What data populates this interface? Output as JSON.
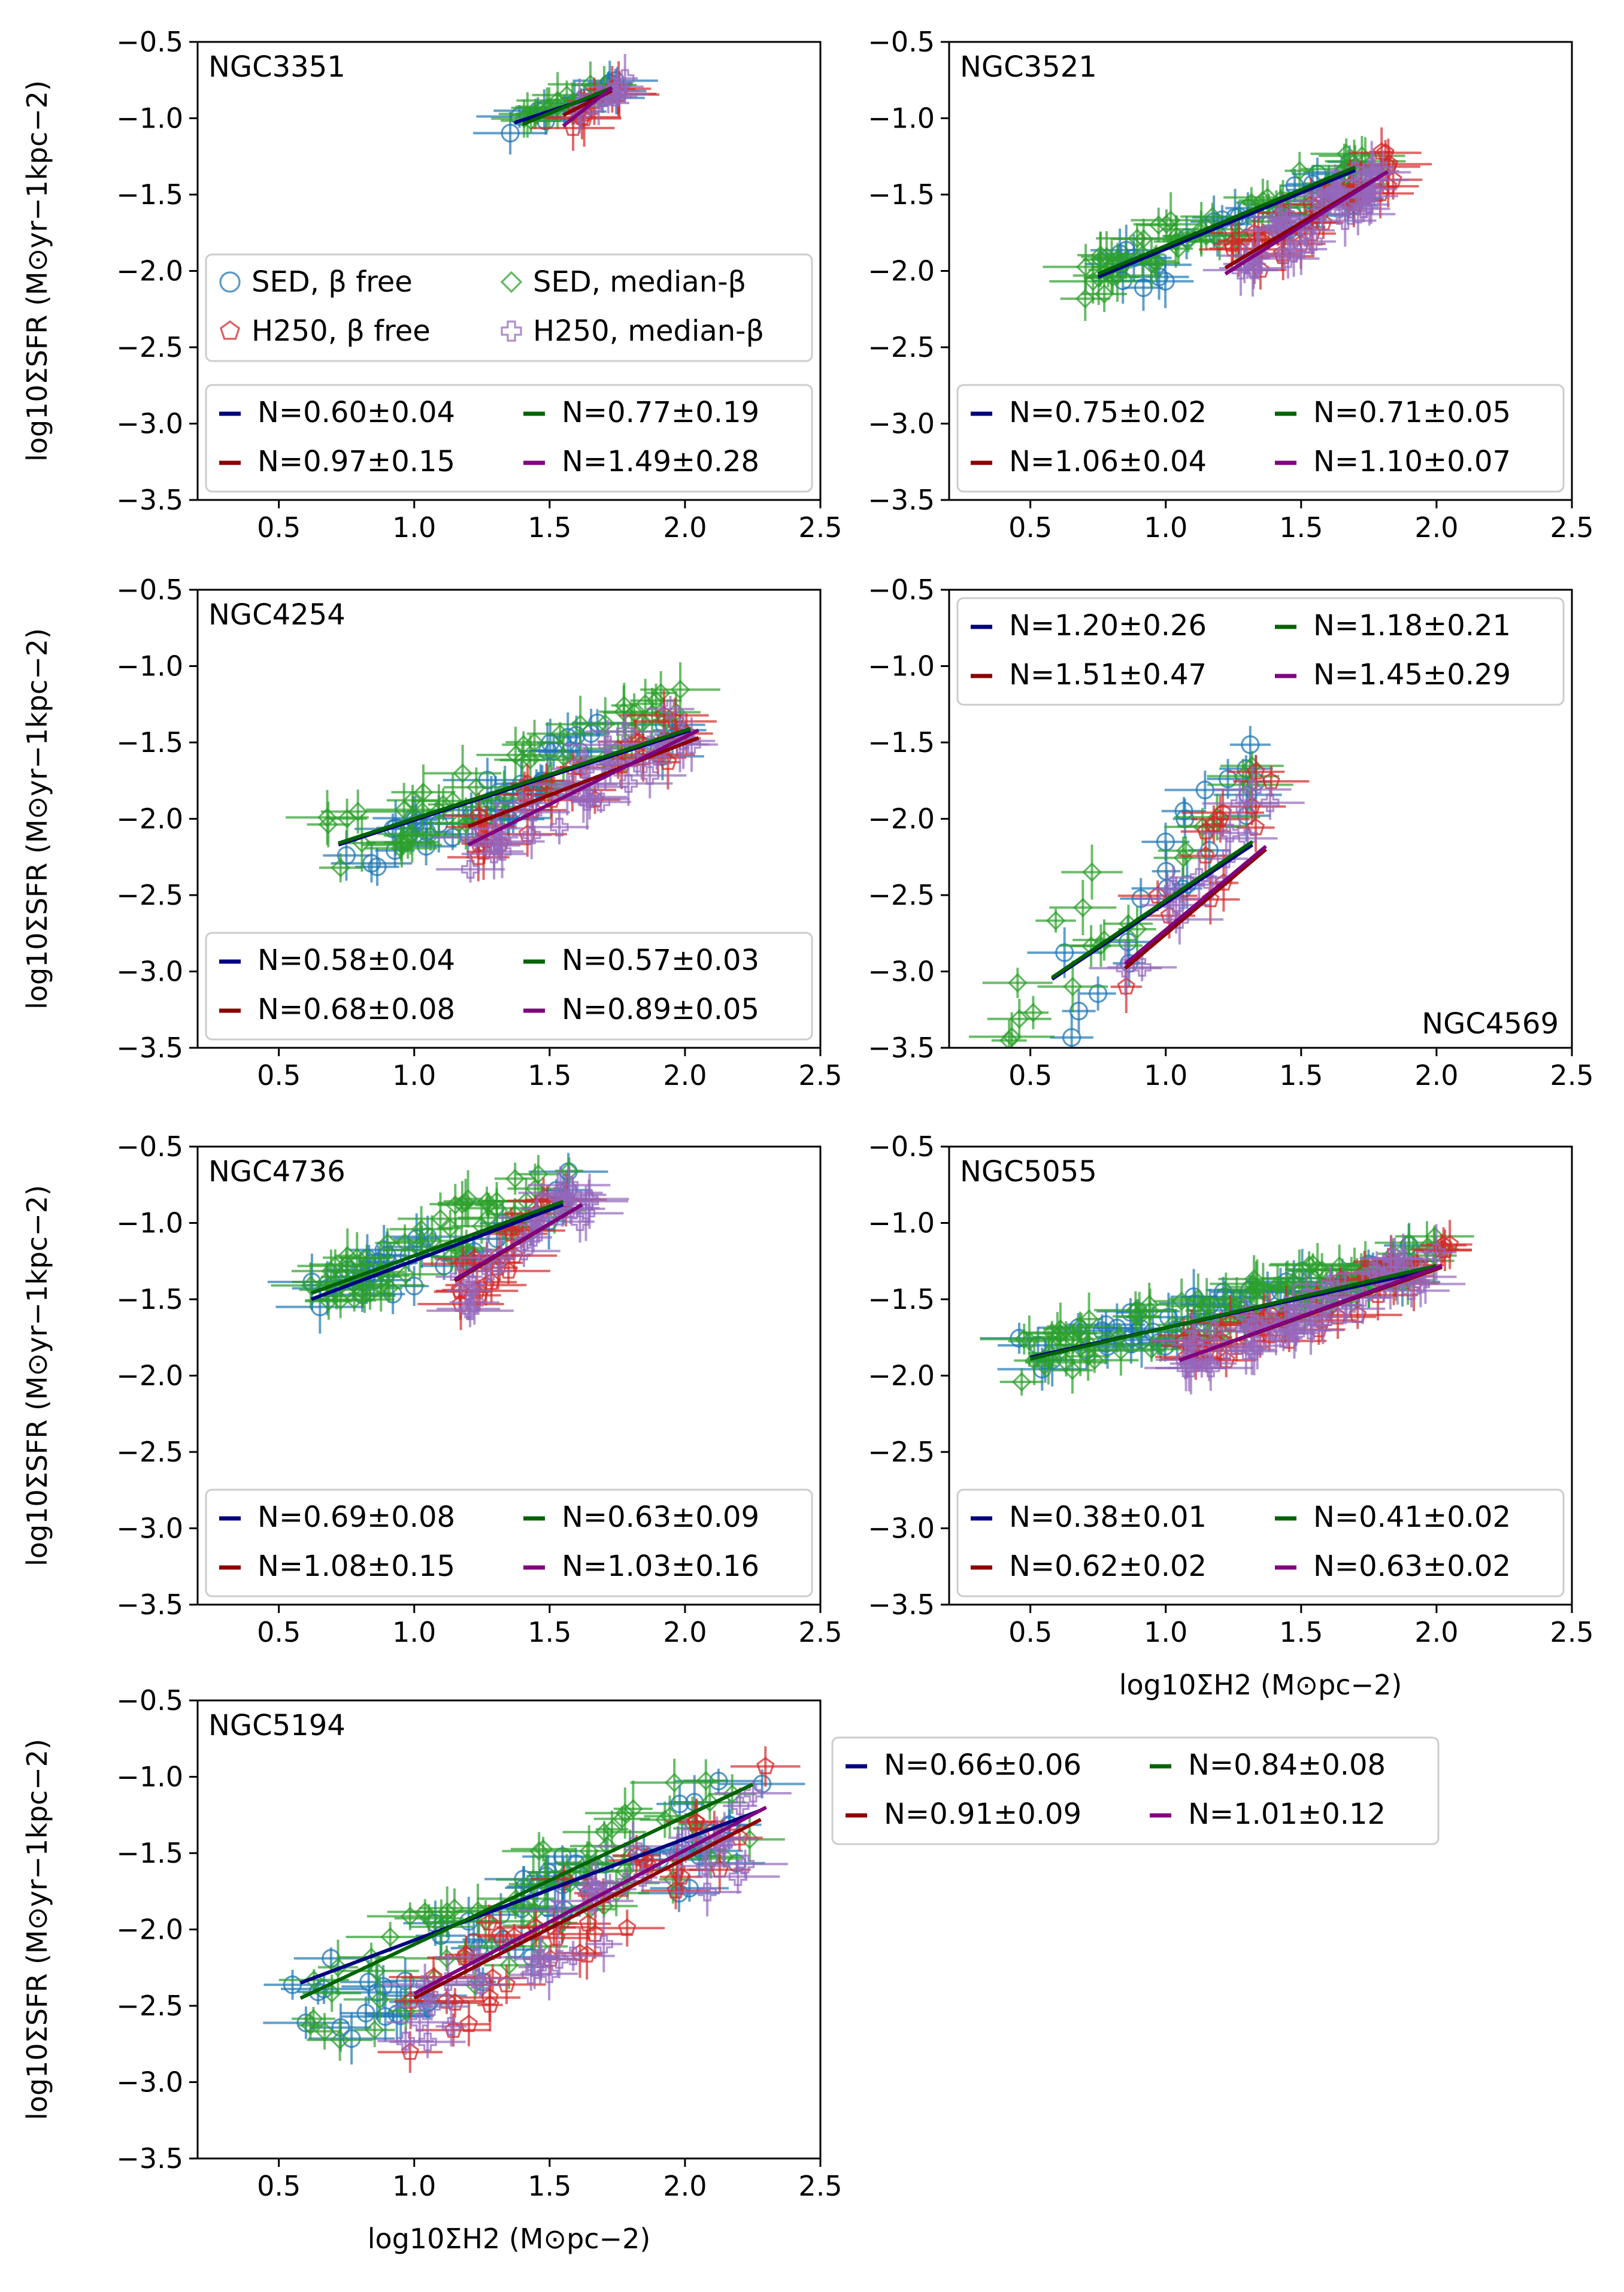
{
  "figure": {
    "x_axis_label": "log10ΣH2 (M⊙pc−2)",
    "y_axis_label": "log10ΣSFR (M⊙yr−1kpc−2)"
  },
  "colors": {
    "sed_free": "#1f77b4",
    "h250_free": "#d62728",
    "sed_median": "#2ca02c",
    "h250_median": "#9467bd",
    "fit_sed_free": "#000080",
    "fit_h250_free": "#8b0000",
    "fit_sed_median": "#006400",
    "fit_h250_median": "#800080"
  },
  "marker_legend": [
    {
      "label": "SED, β free",
      "marker": "circle",
      "color_key": "sed_free"
    },
    {
      "label": "SED, median-β",
      "marker": "diamond",
      "color_key": "sed_median"
    },
    {
      "label": "H250, β free",
      "marker": "pentagon",
      "color_key": "h250_free"
    },
    {
      "label": "H250, median-β",
      "marker": "plus",
      "color_key": "h250_median"
    }
  ],
  "chart_data": [
    {
      "type": "scatter",
      "title": "NGC3351",
      "xlim": [
        0.2,
        2.5
      ],
      "ylim": [
        -3.5,
        -0.5
      ],
      "xticks": [
        "0.5",
        "1.0",
        "1.5",
        "2.0",
        "2.5"
      ],
      "yticks": [
        "−0.5",
        "−1.0",
        "−1.5",
        "−2.0",
        "−2.5",
        "−3.0",
        "−3.5"
      ],
      "clouds": [
        {
          "series": "sed_free",
          "x": [
            1.35,
            1.75
          ],
          "y": [
            -1.05,
            -0.8
          ],
          "n": 14
        },
        {
          "series": "sed_median",
          "x": [
            1.4,
            1.72
          ],
          "y": [
            -1.0,
            -0.75
          ],
          "n": 14
        },
        {
          "series": "h250_free",
          "x": [
            1.55,
            1.78
          ],
          "y": [
            -1.05,
            -0.78
          ],
          "n": 10
        },
        {
          "series": "h250_median",
          "x": [
            1.55,
            1.78
          ],
          "y": [
            -1.0,
            -0.78
          ],
          "n": 10
        }
      ],
      "fits": [
        {
          "series": "fit_sed_free",
          "label": "N=0.60±0.04",
          "x": [
            1.37,
            1.73
          ],
          "y": [
            -1.03,
            -0.82
          ]
        },
        {
          "series": "fit_sed_median",
          "label": "N=0.77±0.19",
          "x": [
            1.4,
            1.73
          ],
          "y": [
            -1.04,
            -0.8
          ]
        },
        {
          "series": "fit_h250_free",
          "label": "N=0.97±0.15",
          "x": [
            1.55,
            1.73
          ],
          "y": [
            -0.98,
            -0.82
          ]
        },
        {
          "series": "fit_h250_median",
          "label": "N=1.49±0.28",
          "x": [
            1.55,
            1.73
          ],
          "y": [
            -1.05,
            -0.8
          ]
        }
      ],
      "show_marker_legend": true,
      "fit_legend": {
        "inside": true,
        "position": "bottom"
      }
    },
    {
      "type": "scatter",
      "title": "NGC3521",
      "xlim": [
        0.2,
        2.5
      ],
      "ylim": [
        -3.5,
        -0.5
      ],
      "xticks": [
        "0.5",
        "1.0",
        "1.5",
        "2.0",
        "2.5"
      ],
      "yticks": [
        "−0.5",
        "−1.0",
        "−1.5",
        "−2.0",
        "−2.5",
        "−3.0",
        "−3.5"
      ],
      "clouds": [
        {
          "series": "sed_free",
          "x": [
            0.8,
            1.8
          ],
          "y": [
            -2.05,
            -1.35
          ],
          "n": 40
        },
        {
          "series": "sed_median",
          "x": [
            0.7,
            1.75
          ],
          "y": [
            -2.05,
            -1.3
          ],
          "n": 55
        },
        {
          "series": "h250_free",
          "x": [
            1.2,
            1.85
          ],
          "y": [
            -2.0,
            -1.3
          ],
          "n": 30
        },
        {
          "series": "h250_median",
          "x": [
            1.2,
            1.82
          ],
          "y": [
            -2.05,
            -1.35
          ],
          "n": 40
        }
      ],
      "fits": [
        {
          "series": "fit_sed_free",
          "label": "N=0.75±0.02",
          "x": [
            0.75,
            1.7
          ],
          "y": [
            -2.04,
            -1.34
          ]
        },
        {
          "series": "fit_sed_median",
          "label": "N=0.71±0.05",
          "x": [
            0.75,
            1.7
          ],
          "y": [
            -2.02,
            -1.32
          ]
        },
        {
          "series": "fit_h250_free",
          "label": "N=1.06±0.04",
          "x": [
            1.22,
            1.82
          ],
          "y": [
            -1.98,
            -1.35
          ]
        },
        {
          "series": "fit_h250_median",
          "label": "N=1.10±0.07",
          "x": [
            1.22,
            1.82
          ],
          "y": [
            -2.02,
            -1.35
          ]
        }
      ],
      "show_marker_legend": false,
      "fit_legend": {
        "inside": true,
        "position": "bottom"
      }
    },
    {
      "type": "scatter",
      "title": "NGC4254",
      "xlim": [
        0.2,
        2.5
      ],
      "ylim": [
        -3.5,
        -0.5
      ],
      "xticks": [
        "0.5",
        "1.0",
        "1.5",
        "2.0",
        "2.5"
      ],
      "yticks": [
        "−0.5",
        "−1.0",
        "−1.5",
        "−2.0",
        "−2.5",
        "−3.0",
        "−3.5"
      ],
      "clouds": [
        {
          "series": "sed_free",
          "x": [
            0.7,
            2.0
          ],
          "y": [
            -2.25,
            -1.35
          ],
          "n": 45
        },
        {
          "series": "sed_median",
          "x": [
            0.65,
            2.0
          ],
          "y": [
            -2.2,
            -1.3
          ],
          "n": 55
        },
        {
          "series": "h250_free",
          "x": [
            1.2,
            2.05
          ],
          "y": [
            -2.15,
            -1.35
          ],
          "n": 30
        },
        {
          "series": "h250_median",
          "x": [
            1.2,
            2.05
          ],
          "y": [
            -2.2,
            -1.35
          ],
          "n": 35
        }
      ],
      "fits": [
        {
          "series": "fit_sed_free",
          "label": "N=0.58±0.04",
          "x": [
            0.72,
            2.02
          ],
          "y": [
            -2.17,
            -1.42
          ]
        },
        {
          "series": "fit_sed_median",
          "label": "N=0.57±0.03",
          "x": [
            0.72,
            2.02
          ],
          "y": [
            -2.16,
            -1.41
          ]
        },
        {
          "series": "fit_h250_free",
          "label": "N=0.68±0.08",
          "x": [
            1.2,
            2.05
          ],
          "y": [
            -2.05,
            -1.47
          ]
        },
        {
          "series": "fit_h250_median",
          "label": "N=0.89±0.05",
          "x": [
            1.2,
            2.05
          ],
          "y": [
            -2.17,
            -1.42
          ]
        }
      ],
      "show_marker_legend": false,
      "fit_legend": {
        "inside": true,
        "position": "bottom"
      }
    },
    {
      "type": "scatter",
      "title": "NGC4569",
      "xlim": [
        0.2,
        2.5
      ],
      "ylim": [
        -3.5,
        -0.5
      ],
      "xticks": [
        "0.5",
        "1.0",
        "1.5",
        "2.0",
        "2.5"
      ],
      "yticks": [
        "−0.5",
        "−1.0",
        "−1.5",
        "−2.0",
        "−2.5",
        "−3.0",
        "−3.5"
      ],
      "clouds": [
        {
          "series": "sed_free",
          "x": [
            0.6,
            1.35
          ],
          "y": [
            -3.2,
            -1.7
          ],
          "n": 22
        },
        {
          "series": "sed_median",
          "x": [
            0.4,
            1.35
          ],
          "y": [
            -3.2,
            -1.7
          ],
          "n": 22
        },
        {
          "series": "h250_free",
          "x": [
            0.85,
            1.4
          ],
          "y": [
            -3.0,
            -1.7
          ],
          "n": 14
        },
        {
          "series": "h250_median",
          "x": [
            0.85,
            1.4
          ],
          "y": [
            -3.0,
            -1.7
          ],
          "n": 14
        }
      ],
      "fits": [
        {
          "series": "fit_sed_free",
          "label": "N=1.20±0.26",
          "x": [
            0.58,
            1.32
          ],
          "y": [
            -3.05,
            -2.17
          ]
        },
        {
          "series": "fit_sed_median",
          "label": "N=1.18±0.21",
          "x": [
            0.58,
            1.32
          ],
          "y": [
            -3.04,
            -2.15
          ]
        },
        {
          "series": "fit_h250_free",
          "label": "N=1.51±0.47",
          "x": [
            0.85,
            1.37
          ],
          "y": [
            -2.98,
            -2.2
          ]
        },
        {
          "series": "fit_h250_median",
          "label": "N=1.45±0.29",
          "x": [
            0.85,
            1.37
          ],
          "y": [
            -2.95,
            -2.18
          ]
        }
      ],
      "show_marker_legend": false,
      "fit_legend": {
        "inside": true,
        "position": "top"
      },
      "title_position": "bottom-right"
    },
    {
      "type": "scatter",
      "title": "NGC4736",
      "xlim": [
        0.2,
        2.5
      ],
      "ylim": [
        -3.5,
        -0.5
      ],
      "xticks": [
        "0.5",
        "1.0",
        "1.5",
        "2.0",
        "2.5"
      ],
      "yticks": [
        "−0.5",
        "−1.0",
        "−1.5",
        "−2.0",
        "−2.5",
        "−3.0",
        "−3.5"
      ],
      "clouds": [
        {
          "series": "sed_free",
          "x": [
            0.6,
            1.6
          ],
          "y": [
            -1.55,
            -0.8
          ],
          "n": 35
        },
        {
          "series": "sed_median",
          "x": [
            0.6,
            1.6
          ],
          "y": [
            -1.5,
            -0.7
          ],
          "n": 55
        },
        {
          "series": "h250_free",
          "x": [
            1.15,
            1.65
          ],
          "y": [
            -1.45,
            -0.75
          ],
          "n": 22
        },
        {
          "series": "h250_median",
          "x": [
            1.15,
            1.65
          ],
          "y": [
            -1.5,
            -0.78
          ],
          "n": 25
        }
      ],
      "fits": [
        {
          "series": "fit_sed_free",
          "label": "N=0.69±0.08",
          "x": [
            0.62,
            1.55
          ],
          "y": [
            -1.5,
            -0.88
          ]
        },
        {
          "series": "fit_sed_median",
          "label": "N=0.63±0.09",
          "x": [
            0.62,
            1.55
          ],
          "y": [
            -1.46,
            -0.86
          ]
        },
        {
          "series": "fit_h250_free",
          "label": "N=1.08±0.15",
          "x": [
            1.15,
            1.62
          ],
          "y": [
            -1.38,
            -0.88
          ]
        },
        {
          "series": "fit_h250_median",
          "label": "N=1.03±0.16",
          "x": [
            1.15,
            1.62
          ],
          "y": [
            -1.37,
            -0.88
          ]
        }
      ],
      "show_marker_legend": false,
      "fit_legend": {
        "inside": true,
        "position": "bottom"
      }
    },
    {
      "type": "scatter",
      "title": "NGC5055",
      "xlim": [
        0.2,
        2.5
      ],
      "ylim": [
        -3.5,
        -0.5
      ],
      "xticks": [
        "0.5",
        "1.0",
        "1.5",
        "2.0",
        "2.5"
      ],
      "yticks": [
        "−0.5",
        "−1.0",
        "−1.5",
        "−2.0",
        "−2.5",
        "−3.0",
        "−3.5"
      ],
      "clouds": [
        {
          "series": "sed_free",
          "x": [
            0.45,
            2.0
          ],
          "y": [
            -1.9,
            -1.25
          ],
          "n": 60
        },
        {
          "series": "sed_median",
          "x": [
            0.45,
            2.0
          ],
          "y": [
            -1.9,
            -1.2
          ],
          "n": 90
        },
        {
          "series": "h250_free",
          "x": [
            1.05,
            2.05
          ],
          "y": [
            -1.9,
            -1.25
          ],
          "n": 40
        },
        {
          "series": "h250_median",
          "x": [
            1.05,
            2.0
          ],
          "y": [
            -1.9,
            -1.25
          ],
          "n": 50
        }
      ],
      "fits": [
        {
          "series": "fit_sed_free",
          "label": "N=0.38±0.01",
          "x": [
            0.5,
            2.0
          ],
          "y": [
            -1.88,
            -1.3
          ]
        },
        {
          "series": "fit_sed_median",
          "label": "N=0.41±0.02",
          "x": [
            0.5,
            2.0
          ],
          "y": [
            -1.89,
            -1.28
          ]
        },
        {
          "series": "fit_h250_free",
          "label": "N=0.62±0.02",
          "x": [
            1.05,
            2.02
          ],
          "y": [
            -1.9,
            -1.29
          ]
        },
        {
          "series": "fit_h250_median",
          "label": "N=0.63±0.02",
          "x": [
            1.05,
            2.02
          ],
          "y": [
            -1.9,
            -1.28
          ]
        }
      ],
      "show_marker_legend": false,
      "fit_legend": {
        "inside": true,
        "position": "bottom"
      },
      "show_xlabel": true
    },
    {
      "type": "scatter",
      "title": "NGC5194",
      "xlim": [
        0.2,
        2.5
      ],
      "ylim": [
        -3.5,
        -0.5
      ],
      "xticks": [
        "0.5",
        "1.0",
        "1.5",
        "2.0",
        "2.5"
      ],
      "yticks": [
        "−0.5",
        "−1.0",
        "−1.5",
        "−2.0",
        "−2.5",
        "−3.0",
        "−3.5"
      ],
      "clouds": [
        {
          "series": "sed_free",
          "x": [
            0.55,
            2.3
          ],
          "y": [
            -2.6,
            -1.2
          ],
          "n": 60
        },
        {
          "series": "sed_median",
          "x": [
            0.6,
            2.25
          ],
          "y": [
            -2.6,
            -1.1
          ],
          "n": 70
        },
        {
          "series": "h250_free",
          "x": [
            0.95,
            2.3
          ],
          "y": [
            -2.6,
            -1.2
          ],
          "n": 40
        },
        {
          "series": "h250_median",
          "x": [
            0.95,
            2.3
          ],
          "y": [
            -2.6,
            -1.25
          ],
          "n": 40
        }
      ],
      "fits": [
        {
          "series": "fit_sed_free",
          "label": "N=0.66±0.06",
          "x": [
            0.58,
            2.28
          ],
          "y": [
            -2.35,
            -1.22
          ]
        },
        {
          "series": "fit_sed_median",
          "label": "N=0.84±0.08",
          "x": [
            0.58,
            2.25
          ],
          "y": [
            -2.45,
            -1.05
          ]
        },
        {
          "series": "fit_h250_free",
          "label": "N=0.91±0.09",
          "x": [
            1.0,
            2.28
          ],
          "y": [
            -2.45,
            -1.28
          ]
        },
        {
          "series": "fit_h250_median",
          "label": "N=1.01±0.12",
          "x": [
            1.0,
            2.3
          ],
          "y": [
            -2.42,
            -1.2
          ]
        }
      ],
      "show_marker_legend": false,
      "fit_legend": {
        "inside": false,
        "position": "outside-right"
      },
      "show_xlabel": true
    }
  ]
}
